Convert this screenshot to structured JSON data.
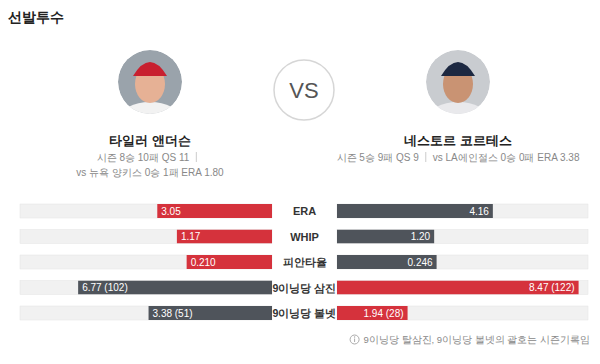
{
  "header": {
    "title": "선발투수"
  },
  "players": [
    {
      "name": "타일러 앤더슨",
      "season": "시즌 8승 10패 QS 11",
      "vs_record": "vs 뉴욕 양키스 0승 1패 ERA 1.80"
    },
    {
      "name": "네스토르 코르테스",
      "season": "시즌 5승 9패 QS 9",
      "vs_record": "vs LA에인절스 0승 0패 ERA 3.38"
    }
  ],
  "vs_label": "VS",
  "chart_data": [
    {
      "type": "bar",
      "orientation": "horizontal",
      "title": "ERA",
      "xlim": [
        0,
        6.7
      ],
      "tick_labels": false,
      "data_labels": true,
      "series": [
        {
          "color": "#d5323c",
          "values": [
            3.05
          ]
        },
        {
          "color": "#4f545b",
          "values": [
            4.16
          ]
        }
      ]
    },
    {
      "type": "bar",
      "orientation": "horizontal",
      "title": "WHIP",
      "xlim": [
        0,
        3.1
      ],
      "tick_labels": false,
      "data_labels": true,
      "series": [
        {
          "color": "#d5323c",
          "values": [
            1.17
          ]
        },
        {
          "color": "#4f545b",
          "values": [
            1.2
          ],
          "value_labels": [
            "1.20"
          ]
        }
      ]
    },
    {
      "type": "bar",
      "orientation": "horizontal",
      "title": "피안타율",
      "xlim": [
        0,
        0.62
      ],
      "tick_labels": false,
      "data_labels": true,
      "series": [
        {
          "color": "#d5323c",
          "values": [
            0.21
          ],
          "value_labels": [
            "0.210"
          ]
        },
        {
          "color": "#4f545b",
          "values": [
            0.246
          ]
        }
      ]
    },
    {
      "type": "bar",
      "orientation": "horizontal",
      "title": "9이닝당 삼진",
      "xlim": [
        0,
        8.8
      ],
      "tick_labels": false,
      "data_labels": true,
      "series": [
        {
          "color": "#4f545b",
          "values": [
            6.77
          ],
          "value_labels": [
            "6.77 (102)"
          ]
        },
        {
          "color": "#d5323c",
          "values": [
            8.47
          ],
          "value_labels": [
            "8.47 (122)"
          ]
        }
      ]
    },
    {
      "type": "bar",
      "orientation": "horizontal",
      "title": "9이닝당 볼넷",
      "xlim": [
        0,
        6.9
      ],
      "tick_labels": false,
      "data_labels": true,
      "series": [
        {
          "color": "#4f545b",
          "values": [
            3.38
          ],
          "value_labels": [
            "3.38 (51)"
          ]
        },
        {
          "color": "#d5323c",
          "values": [
            1.94
          ],
          "value_labels": [
            "1.94 (28)"
          ]
        }
      ]
    }
  ],
  "note": "9이닝당 탈삼진, 9이닝당 볼넷의 괄호는 시즌기록임"
}
